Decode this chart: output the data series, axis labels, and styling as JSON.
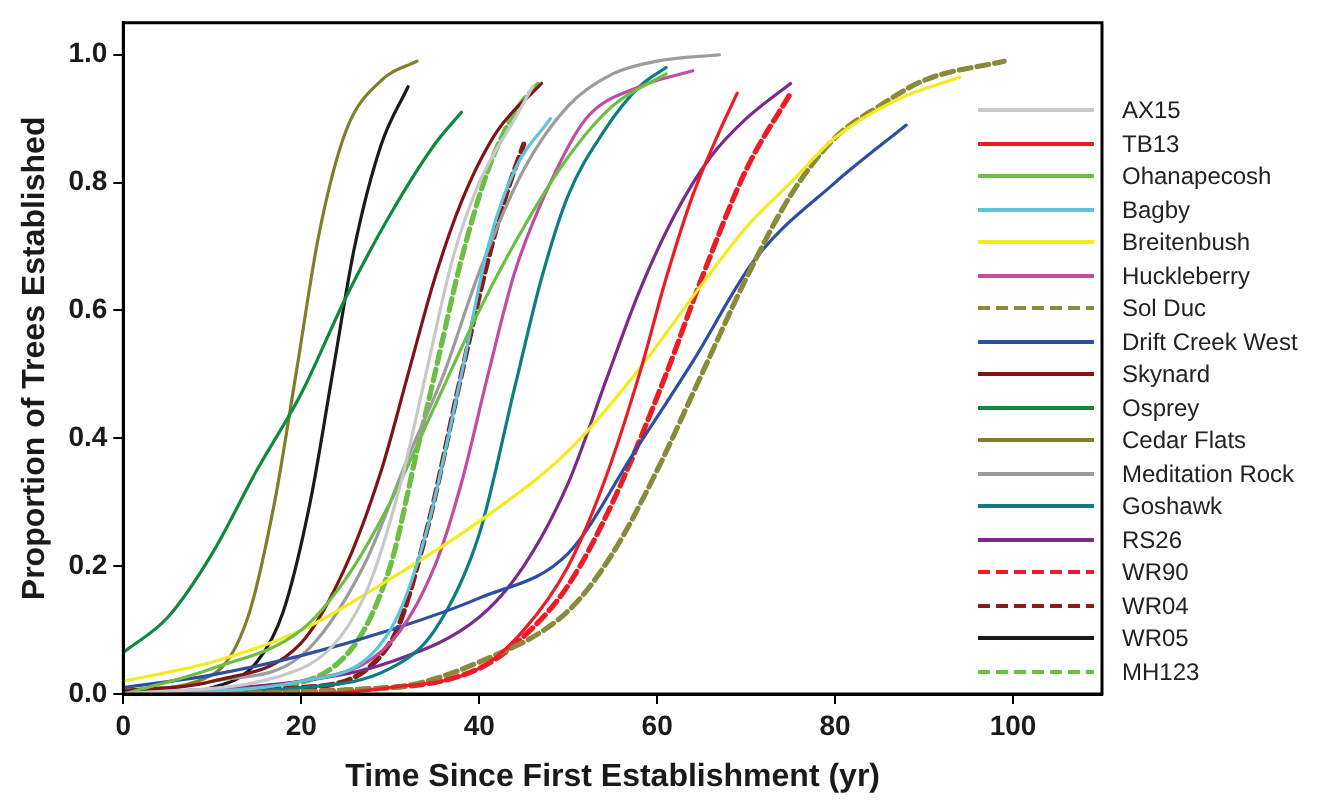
{
  "chart_data": {
    "type": "line",
    "xlabel": "Time Since First Establishment (yr)",
    "ylabel": "Proportion of Trees Established",
    "xlim": [
      0,
      110
    ],
    "xticks": [
      0,
      20,
      40,
      60,
      80,
      100
    ],
    "ylim": [
      0,
      1.05
    ],
    "yticks": [
      {
        "value": 0,
        "label": "0.0"
      },
      {
        "value": 0.2,
        "label": "0.2"
      },
      {
        "value": 0.4,
        "label": "0.4"
      },
      {
        "value": 0.6,
        "label": "0.6"
      },
      {
        "value": 0.8,
        "label": "0.8"
      },
      {
        "value": 1,
        "label": "1.0"
      }
    ],
    "grid": false,
    "legend": "right",
    "line_style": "solid",
    "series": [
      {
        "name": "AX15",
        "color": "#c8c8c8",
        "x": [
          0,
          20,
          27,
          31,
          34,
          37,
          40,
          44,
          46
        ],
        "values": [
          0,
          0.04,
          0.15,
          0.32,
          0.5,
          0.68,
          0.8,
          0.9,
          0.95
        ]
      },
      {
        "name": "TB13",
        "color": "#ed1c24",
        "x": [
          0,
          20,
          30,
          40,
          45,
          50,
          54,
          58,
          61,
          64,
          67,
          69
        ],
        "values": [
          0,
          0,
          0.01,
          0.04,
          0.1,
          0.2,
          0.33,
          0.5,
          0.65,
          0.78,
          0.88,
          0.94
        ]
      },
      {
        "name": "Ohanapecosh",
        "color": "#6dbe45",
        "x": [
          0,
          10,
          20,
          25,
          30,
          35,
          40,
          45,
          50,
          55,
          61
        ],
        "values": [
          0,
          0.04,
          0.1,
          0.18,
          0.3,
          0.45,
          0.6,
          0.73,
          0.84,
          0.92,
          0.97
        ]
      },
      {
        "name": "Bagby",
        "color": "#5bc5dc",
        "x": [
          0,
          20,
          30,
          34,
          38,
          41,
          44,
          48
        ],
        "values": [
          0,
          0.02,
          0.1,
          0.25,
          0.5,
          0.7,
          0.82,
          0.9
        ]
      },
      {
        "name": "Breitenbush",
        "color": "#f2ec1e",
        "x": [
          0,
          10,
          20,
          30,
          40,
          50,
          57.5,
          65,
          70,
          75,
          80,
          87,
          94
        ],
        "values": [
          0.02,
          0.05,
          0.1,
          0.18,
          0.27,
          0.38,
          0.5,
          0.64,
          0.73,
          0.8,
          0.87,
          0.93,
          0.965
        ]
      },
      {
        "name": "Huckleberry",
        "color": "#c04da0",
        "x": [
          0,
          20,
          30,
          35,
          38,
          41,
          44,
          48,
          52,
          58,
          64
        ],
        "values": [
          0,
          0.02,
          0.08,
          0.2,
          0.33,
          0.5,
          0.66,
          0.8,
          0.9,
          0.95,
          0.975
        ]
      },
      {
        "name": "Sol Duc",
        "color": "#8a8a3c",
        "line_style": "dashed",
        "x": [
          0,
          30,
          40,
          50,
          55,
          60,
          65,
          70,
          75,
          80,
          85,
          90,
          99
        ],
        "values": [
          0,
          0.01,
          0.05,
          0.13,
          0.22,
          0.35,
          0.5,
          0.65,
          0.78,
          0.87,
          0.92,
          0.96,
          0.99
        ]
      },
      {
        "name": "Drift Creek West",
        "color": "#2e4fa1",
        "x": [
          0,
          10,
          20,
          30,
          40,
          50,
          57.5,
          64,
          71,
          80,
          88
        ],
        "values": [
          0.01,
          0.03,
          0.06,
          0.1,
          0.15,
          0.22,
          0.38,
          0.52,
          0.68,
          0.8,
          0.89
        ]
      },
      {
        "name": "Skynard",
        "color": "#7f1416",
        "x": [
          0,
          10,
          20,
          25,
          29,
          32,
          35,
          38,
          42,
          47
        ],
        "values": [
          0.005,
          0.02,
          0.08,
          0.2,
          0.35,
          0.5,
          0.65,
          0.77,
          0.88,
          0.955
        ]
      },
      {
        "name": "Osprey",
        "color": "#0e8a3e",
        "x": [
          0,
          5,
          10,
          15,
          20,
          25,
          30,
          35,
          38
        ],
        "values": [
          0.065,
          0.12,
          0.22,
          0.35,
          0.47,
          0.62,
          0.75,
          0.86,
          0.91
        ]
      },
      {
        "name": "Cedar Flats",
        "color": "#7f7f2a",
        "x": [
          0,
          10,
          14,
          17,
          19.4,
          22,
          25,
          29,
          33
        ],
        "values": [
          0.005,
          0.03,
          0.12,
          0.3,
          0.5,
          0.72,
          0.88,
          0.96,
          0.99
        ]
      },
      {
        "name": "Meditation Rock",
        "color": "#9c9c9c",
        "x": [
          0,
          10,
          20,
          27,
          32,
          36,
          40,
          45,
          50,
          55,
          60,
          67
        ],
        "values": [
          0,
          0.02,
          0.06,
          0.2,
          0.37,
          0.5,
          0.66,
          0.82,
          0.92,
          0.97,
          0.99,
          1
        ]
      },
      {
        "name": "Goshawk",
        "color": "#0b7f80",
        "x": [
          0,
          20,
          30,
          35,
          40,
          44,
          47,
          50,
          54,
          58,
          61
        ],
        "values": [
          0,
          0.01,
          0.04,
          0.1,
          0.25,
          0.48,
          0.65,
          0.78,
          0.88,
          0.95,
          0.98
        ]
      },
      {
        "name": "RS26",
        "color": "#7b2a8a",
        "x": [
          0,
          20,
          30,
          40,
          45,
          50,
          54.5,
          58,
          62,
          66,
          70,
          75
        ],
        "values": [
          0,
          0.02,
          0.05,
          0.12,
          0.2,
          0.33,
          0.5,
          0.63,
          0.75,
          0.84,
          0.9,
          0.955
        ]
      },
      {
        "name": "WR90",
        "color": "#ed1c24",
        "line_style": "dashed",
        "x": [
          0,
          30,
          40,
          45,
          50,
          55,
          61,
          65,
          70,
          75
        ],
        "values": [
          0,
          0.01,
          0.04,
          0.09,
          0.17,
          0.3,
          0.5,
          0.65,
          0.82,
          0.94
        ]
      },
      {
        "name": "WR04",
        "color": "#8b1a1a",
        "line_style": "dashed",
        "x": [
          0,
          20,
          30,
          34,
          38,
          41,
          43,
          45
        ],
        "values": [
          0,
          0.01,
          0.08,
          0.25,
          0.5,
          0.68,
          0.78,
          0.86
        ]
      },
      {
        "name": "WR05",
        "color": "#1a1a1a",
        "x": [
          3,
          10,
          15,
          18,
          21,
          23.5,
          26,
          29,
          32
        ],
        "values": [
          0,
          0.01,
          0.05,
          0.13,
          0.3,
          0.5,
          0.7,
          0.86,
          0.95
        ]
      },
      {
        "name": "MH123",
        "color": "#6dbe45",
        "line_style": "dashed",
        "x": [
          0,
          15,
          25,
          30,
          33,
          35,
          38,
          41,
          44,
          47
        ],
        "values": [
          0,
          0.01,
          0.06,
          0.2,
          0.38,
          0.5,
          0.68,
          0.82,
          0.91,
          0.96
        ]
      }
    ]
  }
}
